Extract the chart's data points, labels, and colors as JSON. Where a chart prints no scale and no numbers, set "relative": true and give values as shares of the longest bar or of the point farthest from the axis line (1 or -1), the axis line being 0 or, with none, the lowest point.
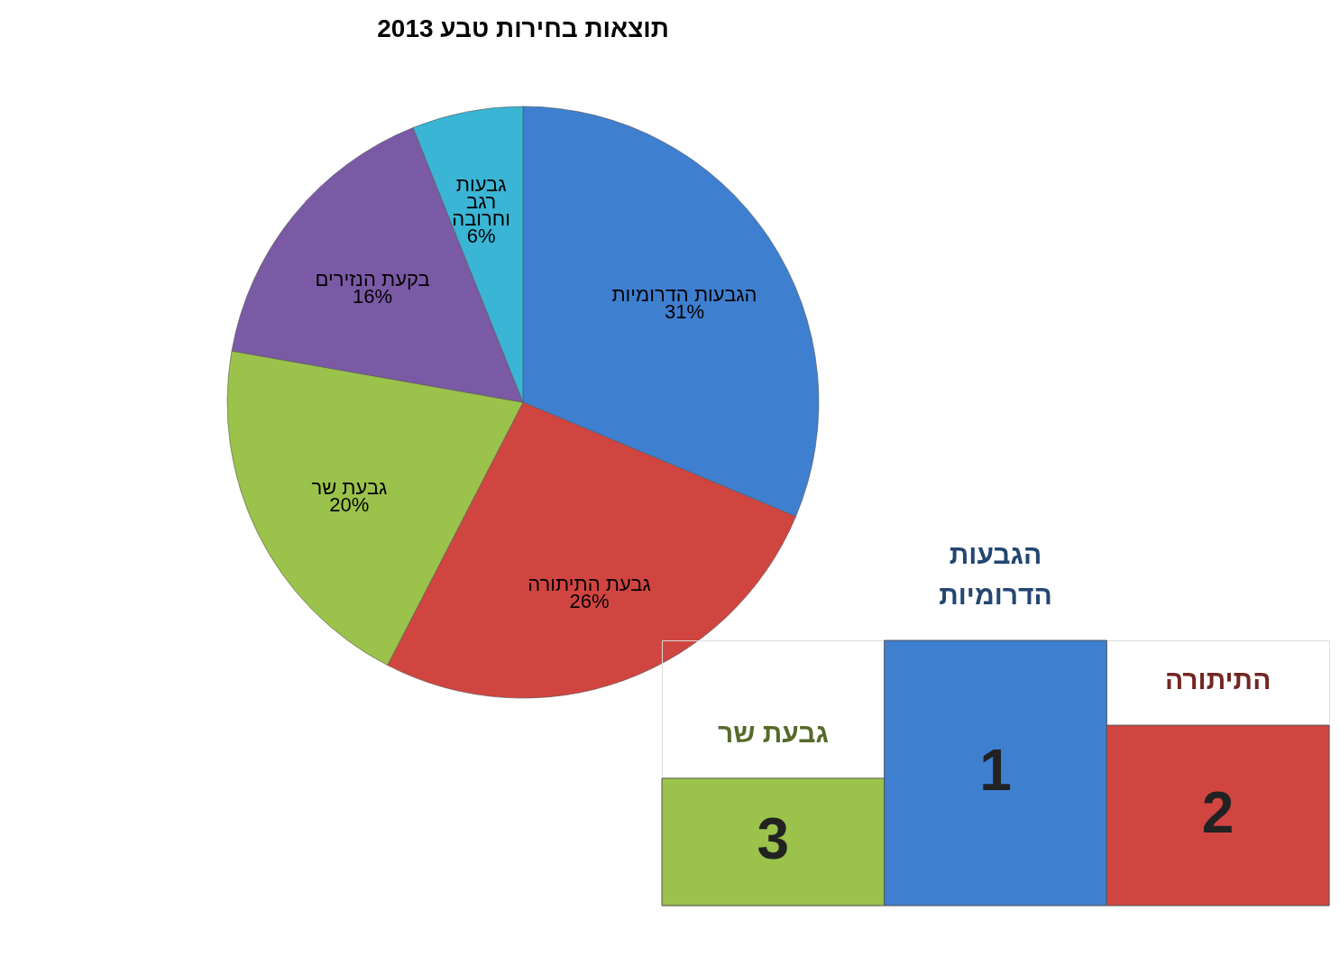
{
  "chart_data": [
    {
      "type": "pie",
      "title": "תוצאות בחירות טבע 2013",
      "categories": [
        "הגבעות הדרומיות",
        "גבעת התיתורה",
        "גבעת שר",
        "בקעת הנזירים",
        "גבעות רגב וחרובה"
      ],
      "values": [
        31,
        26,
        20,
        16,
        6
      ],
      "value_labels": [
        "31%",
        "26%",
        "20%",
        "16%",
        "6%"
      ],
      "colors": [
        "#3f7fd0",
        "#d04540",
        "#9bc24a",
        "#7a5aa5",
        "#3ab5d5"
      ]
    },
    {
      "type": "bar",
      "relative": true,
      "categories": [
        "גבעת שר",
        "הגבעות הדרומיות",
        "התיתורה"
      ],
      "values": [
        0.48,
        1,
        0.68
      ],
      "colors": [
        "#9bc24a",
        "#3f7fd0",
        "#d04540"
      ],
      "annotations": [
        "3",
        "1",
        "2"
      ]
    }
  ]
}
